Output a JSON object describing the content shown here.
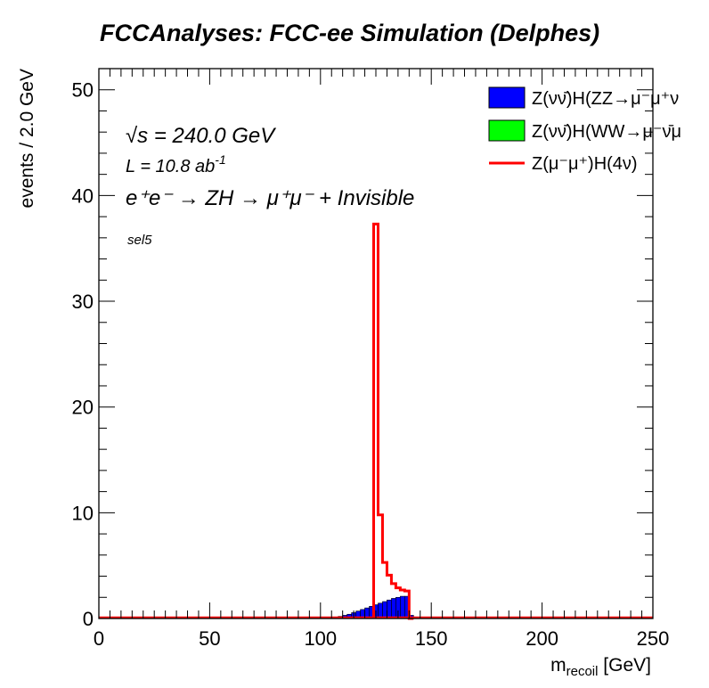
{
  "chart_data": {
    "type": "histogram",
    "title": "FCCAnalyses: FCC-ee Simulation (Delphes)",
    "xlabel_main": "m",
    "xlabel_sub": "recoil",
    "xlabel_unit": " [GeV]",
    "ylabel": "events / 2.0 GeV",
    "xlim": [
      0,
      250
    ],
    "ylim": [
      0,
      52
    ],
    "bin_width": 2.0,
    "x_ticks": [
      0,
      50,
      100,
      150,
      200,
      250
    ],
    "y_ticks": [
      0,
      10,
      20,
      30,
      40,
      50
    ],
    "annotations": {
      "sqrt_s": "√s = 240.0 GeV",
      "lumi_main": "L = 10.8 ab",
      "lumi_exp": "-1",
      "process": "e⁺e⁻ → ZH → μ⁺μ⁻ + Invisible",
      "selection": "sel5"
    },
    "series": [
      {
        "name": "Z(νν̄)H(ZZ→μ⁻μ⁺ν",
        "style": "filled",
        "color": "#0000ff",
        "x": [
          104,
          106,
          108,
          110,
          112,
          114,
          116,
          118,
          120,
          122,
          124,
          126,
          128,
          130,
          132,
          134,
          136,
          138,
          140
        ],
        "values": [
          0.05,
          0.1,
          0.2,
          0.3,
          0.4,
          0.55,
          0.7,
          0.85,
          1.0,
          1.15,
          1.3,
          1.45,
          1.6,
          1.75,
          1.9,
          2.0,
          2.1,
          2.1,
          0.3
        ]
      },
      {
        "name": "Z(νν̄)H(WW→μ⁻ν̄μ",
        "style": "filled",
        "color": "#00ff00",
        "x": [],
        "values": []
      },
      {
        "name": "Z(μ⁻μ⁺)H(4ν)",
        "style": "line",
        "color": "#ff0000",
        "x": [
          124,
          126,
          128,
          130,
          132,
          134,
          136,
          138,
          140
        ],
        "values": [
          37.3,
          9.8,
          5.3,
          4.1,
          3.3,
          2.9,
          2.7,
          2.6,
          0.0
        ]
      }
    ]
  }
}
